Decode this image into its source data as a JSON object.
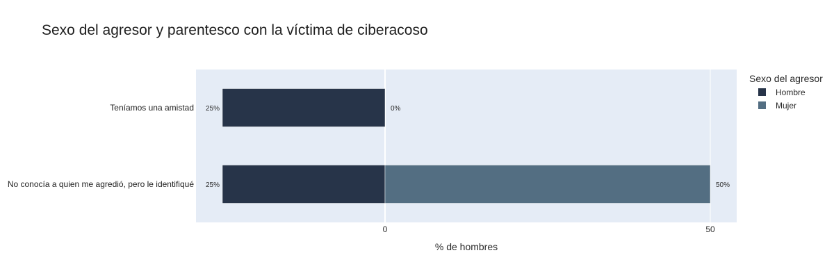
{
  "chart_data": {
    "type": "bar",
    "orientation": "horizontal",
    "barmode": "relative",
    "title": "Sexo del agresor y parentesco con la víctima de ciberacoso",
    "xlabel": "% de hombres",
    "ylabel": "",
    "xlim": [
      -29,
      54
    ],
    "xticks": [
      0,
      50
    ],
    "grid": true,
    "legend_title": "Sexo del agresor",
    "legend_position": "right",
    "categories": [
      "Teníamos una amistad",
      "No conocía a quien me agredió, pero le identifiqué"
    ],
    "series": [
      {
        "name": "Hombre",
        "color": "#273449",
        "direction": "negative",
        "values": [
          25,
          25
        ],
        "labels": [
          "25%",
          "25%"
        ]
      },
      {
        "name": "Mujer",
        "color": "#536e82",
        "direction": "positive",
        "values": [
          0,
          50
        ],
        "labels": [
          "0%",
          "50%"
        ]
      }
    ]
  }
}
